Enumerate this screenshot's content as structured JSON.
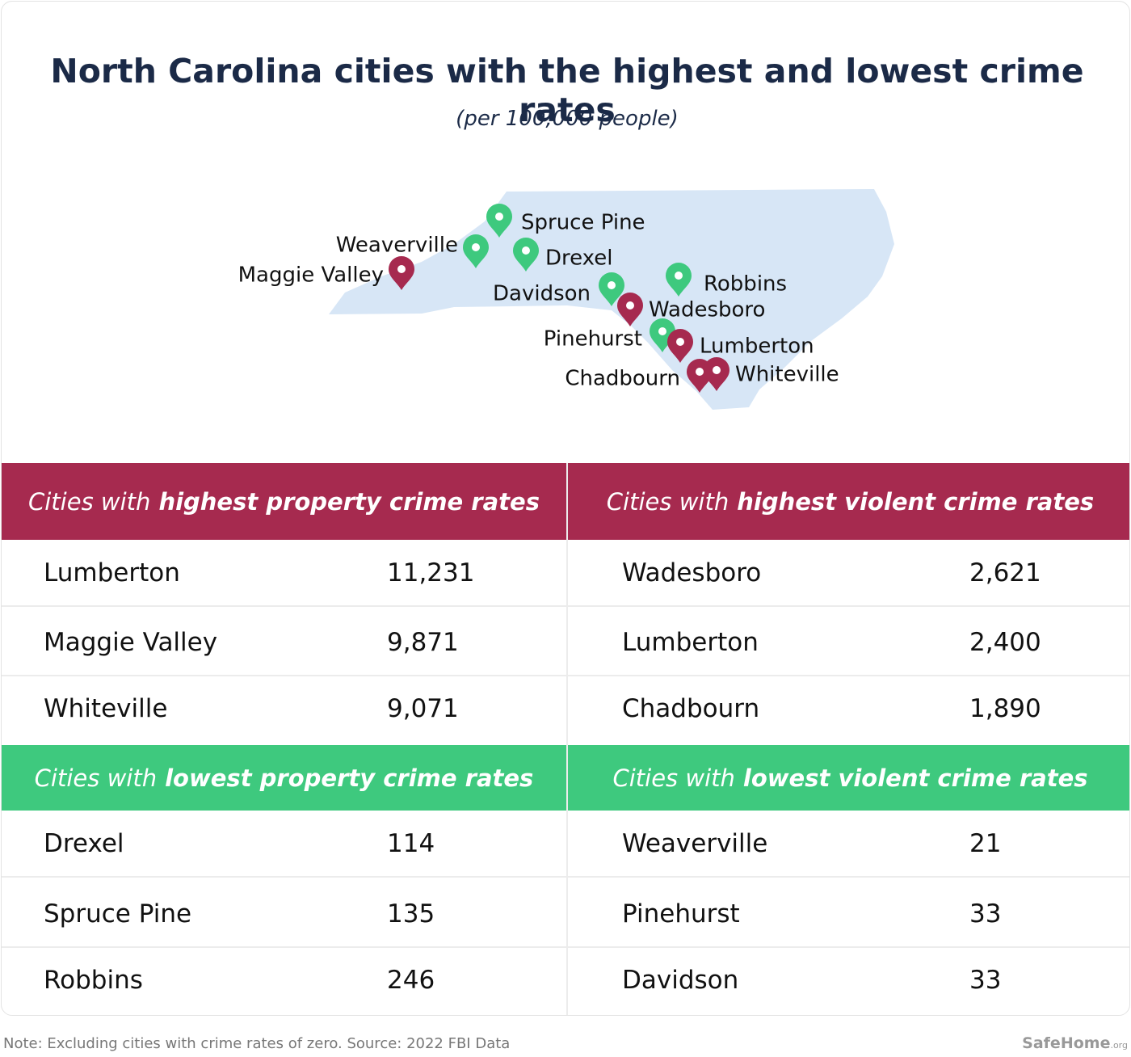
{
  "header": {
    "title": "North Carolina cities with the highest and lowest crime rates",
    "subtitle": "(per 100,000 people)"
  },
  "map": {
    "pins": [
      {
        "label": "Spruce Pine"
      },
      {
        "label": "Weaverville"
      },
      {
        "label": "Drexel"
      },
      {
        "label": "Maggie Valley"
      },
      {
        "label": "Davidson"
      },
      {
        "label": "Robbins"
      },
      {
        "label": "Wadesboro"
      },
      {
        "label": "Pinehurst"
      },
      {
        "label": "Lumberton"
      },
      {
        "label": "Chadbourn"
      },
      {
        "label": "Whiteville"
      }
    ]
  },
  "tables": [
    {
      "heading": {
        "prefix": "Cities with",
        "emphasis": "highest property crime rates"
      },
      "rows": [
        [
          "Lumberton",
          "11,231"
        ],
        [
          "Maggie Valley",
          "9,871"
        ],
        [
          "Whiteville",
          "9,071"
        ]
      ]
    },
    {
      "heading": {
        "prefix": "Cities with",
        "emphasis": "highest violent crime rates"
      },
      "rows": [
        [
          "Wadesboro",
          "2,621"
        ],
        [
          "Lumberton",
          "2,400"
        ],
        [
          "Chadbourn",
          "1,890"
        ]
      ]
    },
    {
      "heading": {
        "prefix": "Cities with",
        "emphasis": "lowest property crime rates"
      },
      "rows": [
        [
          "Drexel",
          "114"
        ],
        [
          "Spruce Pine",
          "135"
        ],
        [
          "Robbins",
          "246"
        ]
      ]
    },
    {
      "heading": {
        "prefix": "Cities with",
        "emphasis": "lowest violent crime rates"
      },
      "rows": [
        [
          "Weaverville",
          "21"
        ],
        [
          "Pinehurst",
          "33"
        ],
        [
          "Davidson",
          "33"
        ]
      ]
    }
  ],
  "footer": {
    "note": "Note: Excluding cities with crime rates of zero. Source: 2022 FBI Data",
    "brand": "SafeHome",
    "brand_suffix": ".org"
  }
}
